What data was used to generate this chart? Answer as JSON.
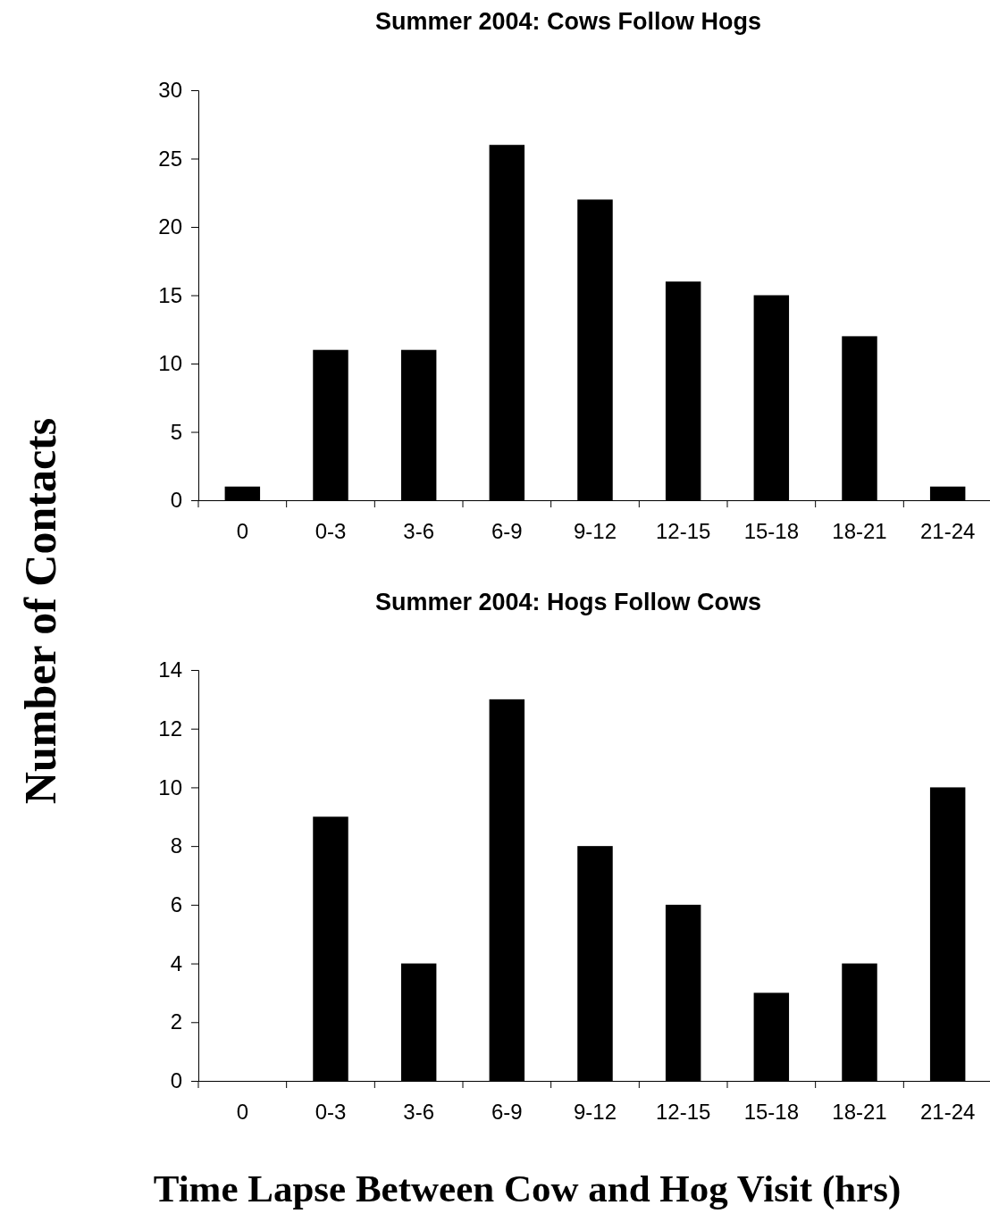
{
  "chart_data": [
    {
      "type": "bar",
      "title": "Summer 2004: Cows Follow Hogs",
      "ylabel": "Number of Contacts",
      "categories": [
        "0",
        "0-3",
        "3-6",
        "6-9",
        "9-12",
        "12-15",
        "15-18",
        "18-21",
        "21-24"
      ],
      "values": [
        1,
        11,
        11,
        26,
        22,
        16,
        15,
        12,
        1
      ],
      "color": "#000000",
      "ylim": [
        0,
        30
      ],
      "yticks": [
        0,
        5,
        10,
        15,
        20,
        25,
        30
      ],
      "grid": false
    },
    {
      "type": "bar",
      "title": "Summer 2004: Hogs Follow Cows",
      "xlabel": "Time Lapse Between Cow and Hog Visit (hrs)",
      "categories": [
        "0",
        "0-3",
        "3-6",
        "6-9",
        "9-12",
        "12-15",
        "15-18",
        "18-21",
        "21-24"
      ],
      "values": [
        0,
        9,
        4,
        13,
        8,
        6,
        3,
        4,
        10
      ],
      "color": "#000000",
      "ylim": [
        0,
        14
      ],
      "yticks": [
        0,
        2,
        4,
        6,
        8,
        10,
        12,
        14
      ],
      "grid": false
    }
  ]
}
